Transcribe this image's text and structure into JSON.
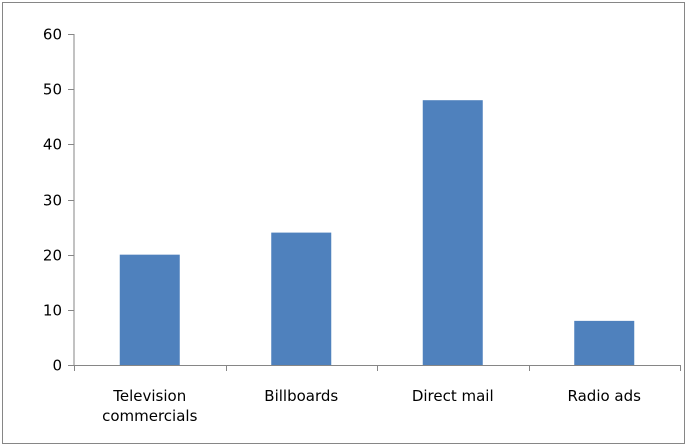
{
  "chart_data": {
    "type": "bar",
    "title": "",
    "xlabel": "",
    "ylabel": "",
    "categories": [
      [
        "Television",
        "commercials"
      ],
      [
        "Billboards"
      ],
      [
        "Direct mail"
      ],
      [
        "Radio ads"
      ]
    ],
    "values": [
      20,
      24,
      48,
      8
    ],
    "ylim": [
      0,
      60
    ],
    "yticks": [
      "0",
      "10",
      "20",
      "30",
      "40",
      "50",
      "60"
    ],
    "grid": false,
    "legend": "none",
    "bar_color": "#4F81BD",
    "axis_color": "#868686"
  }
}
